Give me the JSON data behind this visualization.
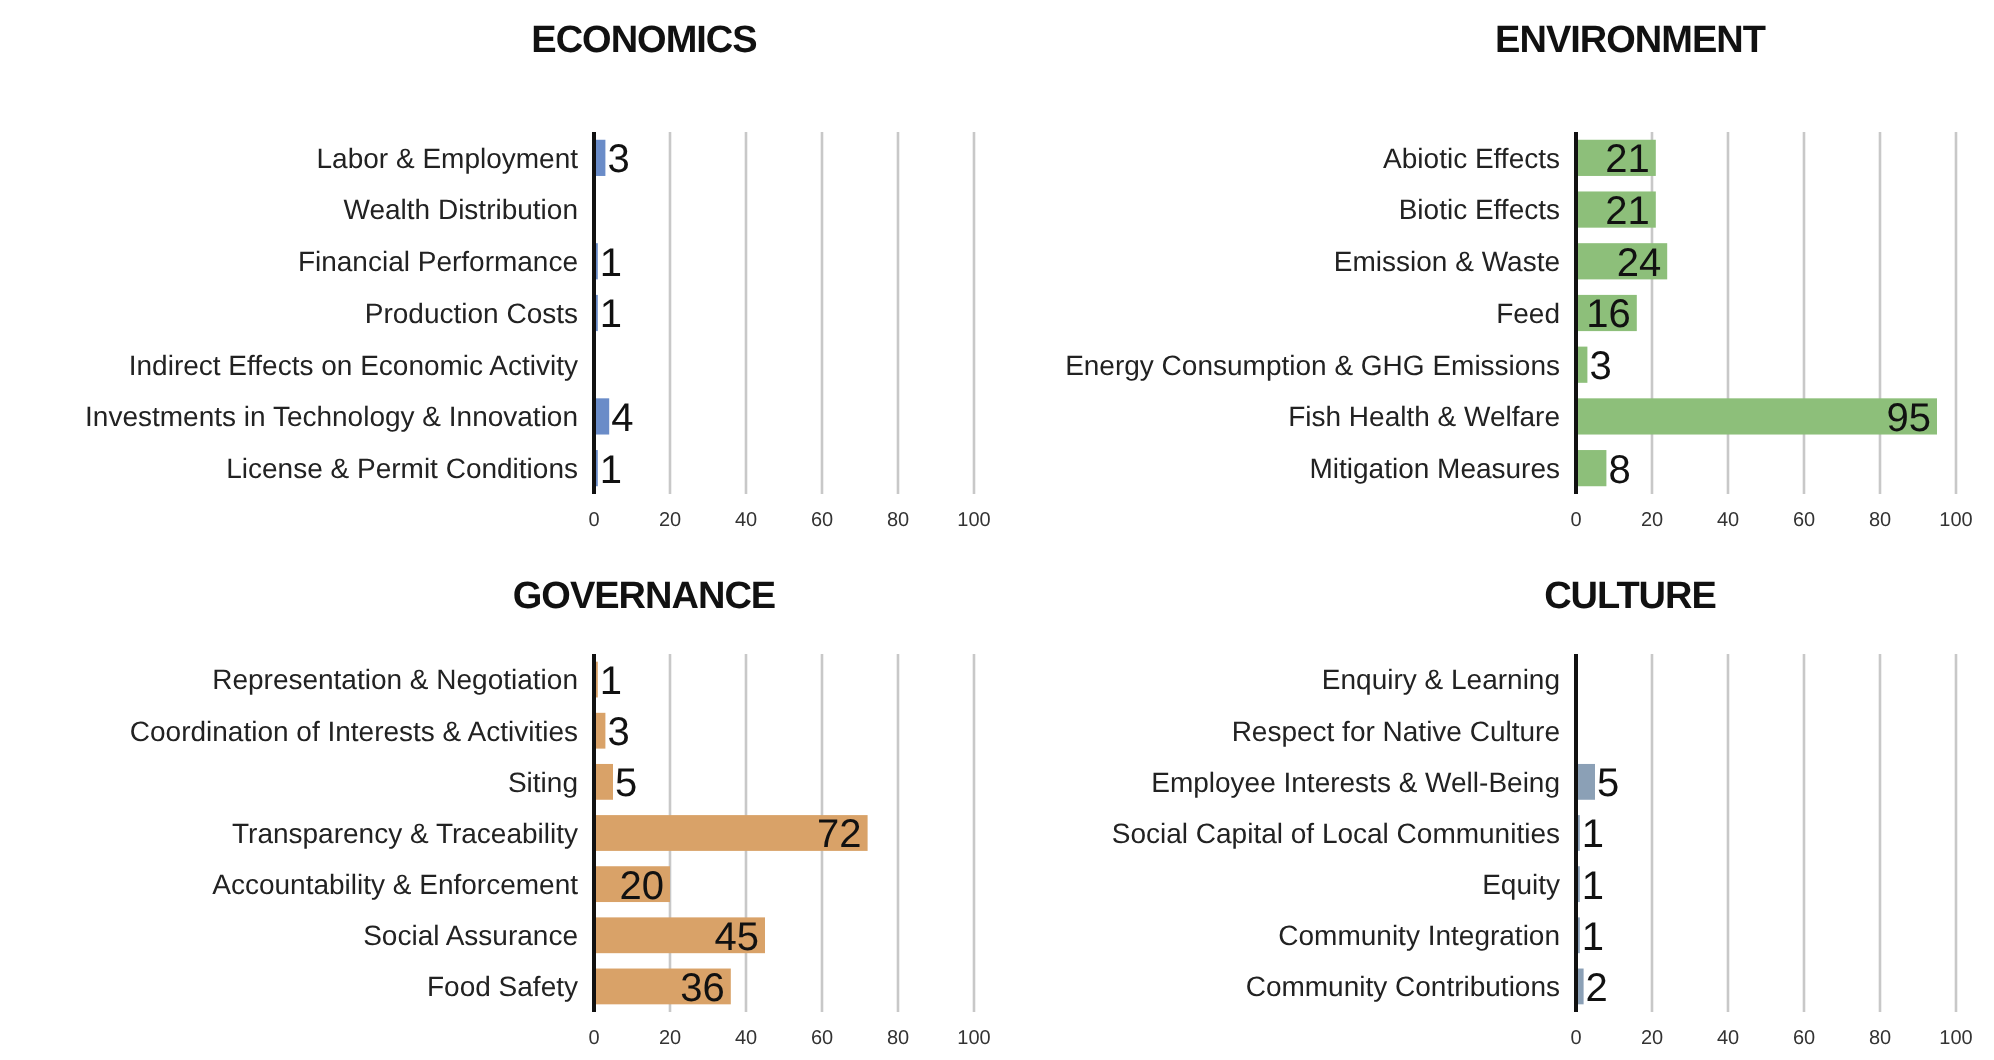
{
  "chart_data": [
    {
      "type": "bar",
      "orientation": "horizontal",
      "title": "ECONOMICS",
      "categories": [
        "Labor & Employment",
        "Wealth Distribution",
        "Financial Performance",
        "Production Costs",
        "Indirect Effects on Economic Activity",
        "Investments in Technology & Innovation",
        "License & Permit Conditions"
      ],
      "values": [
        3,
        null,
        1,
        1,
        null,
        4,
        1
      ],
      "color": "#6a8cc8",
      "xlim": [
        0,
        100
      ],
      "xticks": [
        0,
        20,
        40,
        60,
        80,
        100
      ],
      "grid": "x",
      "data_labels": true
    },
    {
      "type": "bar",
      "orientation": "horizontal",
      "title": "ENVIRONMENT",
      "categories": [
        "Abiotic Effects",
        "Biotic Effects",
        "Emission & Waste",
        "Feed",
        "Energy Consumption & GHG Emissions",
        "Fish Health & Welfare",
        "Mitigation Measures"
      ],
      "values": [
        21,
        21,
        24,
        16,
        3,
        95,
        8
      ],
      "color": "#8dbf7a",
      "xlim": [
        0,
        100
      ],
      "xticks": [
        0,
        20,
        40,
        60,
        80,
        100
      ],
      "grid": "x",
      "data_labels": true
    },
    {
      "type": "bar",
      "orientation": "horizontal",
      "title": "GOVERNANCE",
      "categories": [
        "Representation & Negotiation",
        "Coordination of Interests & Activities",
        "Siting",
        "Transparency & Traceability",
        "Accountability & Enforcement",
        "Social Assurance",
        "Food Safety"
      ],
      "values": [
        1,
        3,
        5,
        72,
        20,
        45,
        36
      ],
      "color": "#d9a268",
      "xlim": [
        0,
        100
      ],
      "xticks": [
        0,
        20,
        40,
        60,
        80,
        100
      ],
      "grid": "x",
      "data_labels": true
    },
    {
      "type": "bar",
      "orientation": "horizontal",
      "title": "CULTURE",
      "categories": [
        "Enquiry & Learning",
        "Respect for Native Culture",
        "Employee Interests & Well-Being",
        "Social Capital of Local Communities",
        "Equity",
        "Community Integration",
        "Community Contributions"
      ],
      "values": [
        null,
        null,
        5,
        1,
        1,
        1,
        2
      ],
      "color": "#8ba0b6",
      "xlim": [
        0,
        100
      ],
      "xticks": [
        0,
        20,
        40,
        60,
        80,
        100
      ],
      "grid": "x",
      "data_labels": true
    }
  ]
}
